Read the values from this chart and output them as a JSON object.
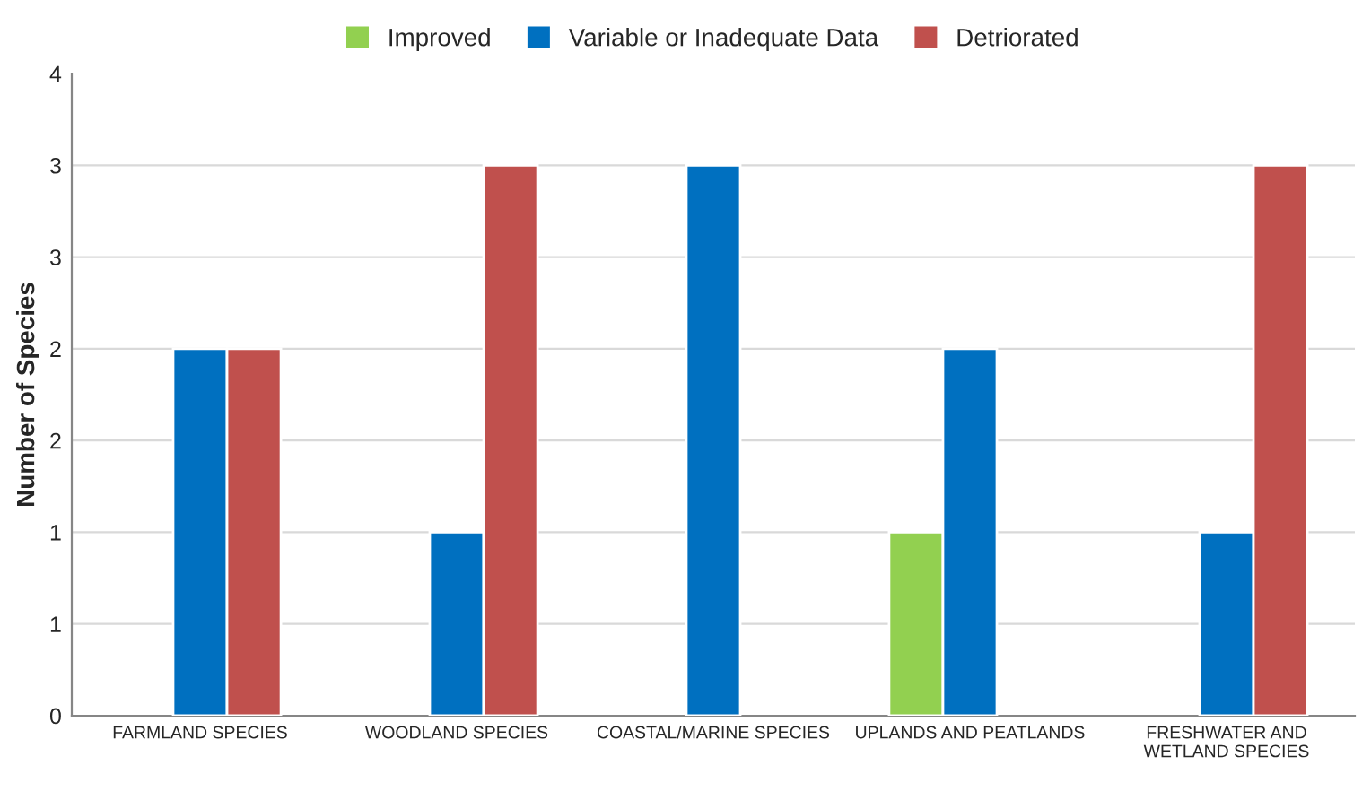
{
  "chart_data": {
    "type": "bar",
    "ylabel": "Number of Species",
    "categories": [
      "FARMLAND SPECIES",
      "WOODLAND SPECIES",
      "COASTAL/MARINE SPECIES",
      "UPLANDS AND PEATLANDS",
      "FRESHWATER AND\nWETLAND SPECIES"
    ],
    "series": [
      {
        "name": "Improved",
        "color": "#92d050",
        "values": [
          null,
          null,
          null,
          1,
          null
        ]
      },
      {
        "name": "Variable or Inadequate Data",
        "color": "#0070c0",
        "values": [
          2,
          1,
          3,
          2,
          1
        ]
      },
      {
        "name": "Detriorated",
        "color": "#c0504d",
        "values": [
          2,
          3,
          null,
          null,
          3
        ]
      }
    ],
    "ylim": [
      0,
      3.5
    ],
    "yticks": [
      0,
      {
        "value": 0.5,
        "label": "1"
      },
      1,
      {
        "value": 1.5,
        "label": "2"
      },
      2,
      {
        "value": 2.5,
        "label": "3"
      },
      3,
      {
        "value": 3.5,
        "label": "4"
      }
    ],
    "grid": "y",
    "legend": "top"
  }
}
